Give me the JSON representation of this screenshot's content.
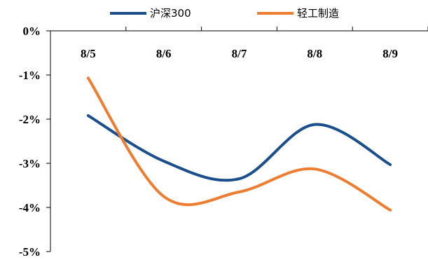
{
  "chart_data": {
    "type": "line",
    "categories": [
      "8/5",
      "8/6",
      "8/7",
      "8/8",
      "8/9"
    ],
    "y_ticks": [
      "0%",
      "-1%",
      "-2%",
      "-3%",
      "-4%",
      "-5%"
    ],
    "ylim": [
      -5,
      0
    ],
    "grid": false,
    "legend_position": "top",
    "x_axis_position": "top",
    "series": [
      {
        "name": "沪深300",
        "color": "#1a4f8b",
        "values": [
          -1.92,
          -2.95,
          -3.35,
          -2.12,
          -3.03
        ]
      },
      {
        "name": "轻工制造",
        "color": "#ed7d31",
        "values": [
          -1.07,
          -3.75,
          -3.65,
          -3.13,
          -4.06
        ]
      }
    ]
  }
}
